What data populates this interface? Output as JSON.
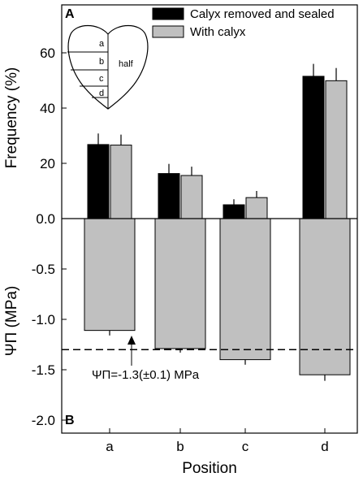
{
  "chart_data": [
    {
      "panel": "A",
      "type": "bar",
      "categories": [
        "a",
        "b",
        "c",
        "d"
      ],
      "ylabel": "Frequency (%)",
      "ylim": [
        0,
        62
      ],
      "yticks": [
        "0.0",
        "20",
        "40",
        "60"
      ],
      "grid": false,
      "legend_position": "top-right",
      "series": [
        {
          "name": "Calyx removed and sealed",
          "color": "#000000",
          "values": [
            26.8,
            16.3,
            5.0,
            51.5
          ],
          "errors": [
            4.0,
            3.5,
            2.0,
            4.5
          ]
        },
        {
          "name": "With calyx",
          "color": "#c0c0c0",
          "values": [
            26.6,
            15.6,
            7.6,
            49.9
          ],
          "errors": [
            3.8,
            3.2,
            2.4,
            4.6
          ]
        }
      ],
      "inset": {
        "segment_labels": [
          "a",
          "b",
          "c",
          "d"
        ],
        "half_label": "half"
      }
    },
    {
      "panel": "B",
      "type": "bar",
      "categories": [
        "a",
        "b",
        "c",
        "d"
      ],
      "ylabel": "ΨΠ (MPa)",
      "ylim": [
        -2.3,
        0
      ],
      "yticks": [
        "0.0",
        "-0.5",
        "-1.0",
        "-1.5",
        "-2.0"
      ],
      "xlabel": "Position",
      "grid": false,
      "series": [
        {
          "color": "#c0c0c0",
          "values": [
            -1.11,
            -1.29,
            -1.4,
            -1.55
          ],
          "errors": [
            0.05,
            0.04,
            0.05,
            0.06
          ]
        }
      ],
      "reference_line": {
        "value": -1.3,
        "style": "dashed",
        "label": "ΨΠ=-1.3(±0.1) MPa"
      }
    }
  ]
}
